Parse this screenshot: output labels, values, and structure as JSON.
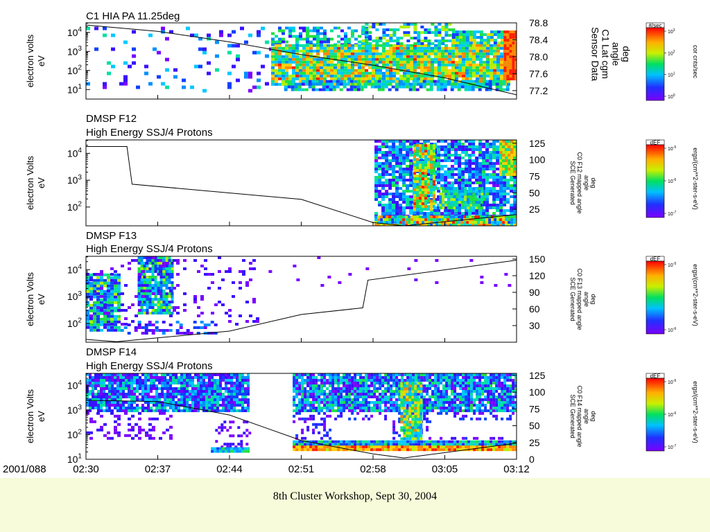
{
  "footer": {
    "text": "8th Cluster Workshop, Sept 30, 2004"
  },
  "time_axis": {
    "date_label": "2001/088",
    "ticks": [
      "02:30",
      "02:37",
      "02:44",
      "02:51",
      "02:58",
      "03:05",
      "03:12"
    ]
  },
  "chart_data": [
    {
      "type": "heatmap",
      "title": "C1 HIA PA 11.25deg",
      "ylabel": "electron volts",
      "ylabel_unit": "eV",
      "y_ticks": [
        "10^4",
        "10^3",
        "10^2",
        "10^1"
      ],
      "y_log_range": [
        0.5,
        4.5
      ],
      "right_ticks": [
        "78.8",
        "78.4",
        "78.0",
        "77.6",
        "77.2"
      ],
      "right_range": [
        77.0,
        78.8
      ],
      "right_label": [
        "Sensor Data",
        "C1 Lat cgm",
        "angle",
        "deg"
      ],
      "colorbar": {
        "title": "#/sec",
        "ticks": [
          "10^3",
          "10^2",
          "10^1",
          "10^0"
        ],
        "unit": "cor cnts/sec"
      },
      "line_series": [
        {
          "x": "02:30",
          "y": 78.75
        },
        {
          "x": "02:37",
          "y": 78.6
        },
        {
          "x": "02:44",
          "y": 78.35
        },
        {
          "x": "02:51",
          "y": 78.05
        },
        {
          "x": "02:58",
          "y": 77.8
        },
        {
          "x": "03:05",
          "y": 77.5
        },
        {
          "x": "03:12",
          "y": 77.1
        }
      ]
    },
    {
      "type": "heatmap",
      "title": "DMSP F12",
      "subtitle": "High Energy SSJ/4 Protons",
      "ylabel": "electron Volts",
      "ylabel_unit": "eV",
      "y_ticks": [
        "10^4",
        "10^3",
        "10^2"
      ],
      "y_log_range": [
        1.3,
        4.5
      ],
      "right_ticks": [
        "125",
        "100",
        "75",
        "50",
        "25"
      ],
      "right_range": [
        0,
        130
      ],
      "right_label": [
        "SCE Generated",
        "C0 F12 mapped angle",
        "angle",
        "deg"
      ],
      "colorbar": {
        "title": "dEF",
        "ticks": [
          "10^-5",
          "10^-6",
          "10^-7"
        ],
        "unit": "ergs/(cm**2-ster-s-eV)"
      },
      "line_series": [
        {
          "x": "02:30",
          "y": 120
        },
        {
          "x": "02:34",
          "y": 120
        },
        {
          "x": "02:34.5",
          "y": 63
        },
        {
          "x": "02:51",
          "y": 40
        },
        {
          "x": "02:58",
          "y": 5
        },
        {
          "x": "03:01",
          "y": 0
        },
        {
          "x": "03:12",
          "y": 17
        }
      ]
    },
    {
      "type": "heatmap",
      "title": "DMSP F13",
      "subtitle": "High Energy SSJ/4 Protons",
      "ylabel": "electron Volts",
      "ylabel_unit": "eV",
      "y_ticks": [
        "10^4",
        "10^3",
        "10^2"
      ],
      "y_log_range": [
        1.3,
        4.5
      ],
      "right_ticks": [
        "150",
        "120",
        "90",
        "60",
        "30"
      ],
      "right_range": [
        0,
        155
      ],
      "right_label": [
        "SCE Generated",
        "C0 F13 mapped angle",
        "angle",
        "deg"
      ],
      "colorbar": {
        "title": "dEF",
        "ticks": [
          "10^-5",
          "10^-6"
        ],
        "unit": "ergs/(cm**2-ster-s-eV)"
      },
      "line_series": [
        {
          "x": "02:30",
          "y": 5
        },
        {
          "x": "02:33",
          "y": 1
        },
        {
          "x": "02:44",
          "y": 20
        },
        {
          "x": "02:51",
          "y": 50
        },
        {
          "x": "02:57",
          "y": 62
        },
        {
          "x": "02:57.5",
          "y": 112
        },
        {
          "x": "03:12",
          "y": 148
        }
      ]
    },
    {
      "type": "heatmap",
      "title": "DMSP F14",
      "subtitle": "High Energy SSJ/4 Protons",
      "ylabel": "electron Volts",
      "ylabel_unit": "eV",
      "y_ticks": [
        "10^4",
        "10^3",
        "10^2",
        "10^1"
      ],
      "y_log_range": [
        1.0,
        4.5
      ],
      "right_ticks": [
        "125",
        "100",
        "75",
        "50",
        "25",
        "0"
      ],
      "right_range": [
        0,
        128
      ],
      "right_label": [
        "SCE Generated",
        "C0 F14 mapped angle",
        "angle",
        "deg"
      ],
      "colorbar": {
        "title": "dEF",
        "ticks": [
          "10^-6",
          "10^-6",
          "10^-7"
        ],
        "unit": "ergs/(cm**2-ster-s-eV)"
      },
      "line_series": [
        {
          "x": "02:30",
          "y": 88
        },
        {
          "x": "02:37",
          "y": 86
        },
        {
          "x": "02:44",
          "y": 66
        },
        {
          "x": "02:51",
          "y": 28
        },
        {
          "x": "02:58",
          "y": 8
        },
        {
          "x": "03:01",
          "y": 2
        },
        {
          "x": "03:12",
          "y": 24
        }
      ]
    }
  ]
}
